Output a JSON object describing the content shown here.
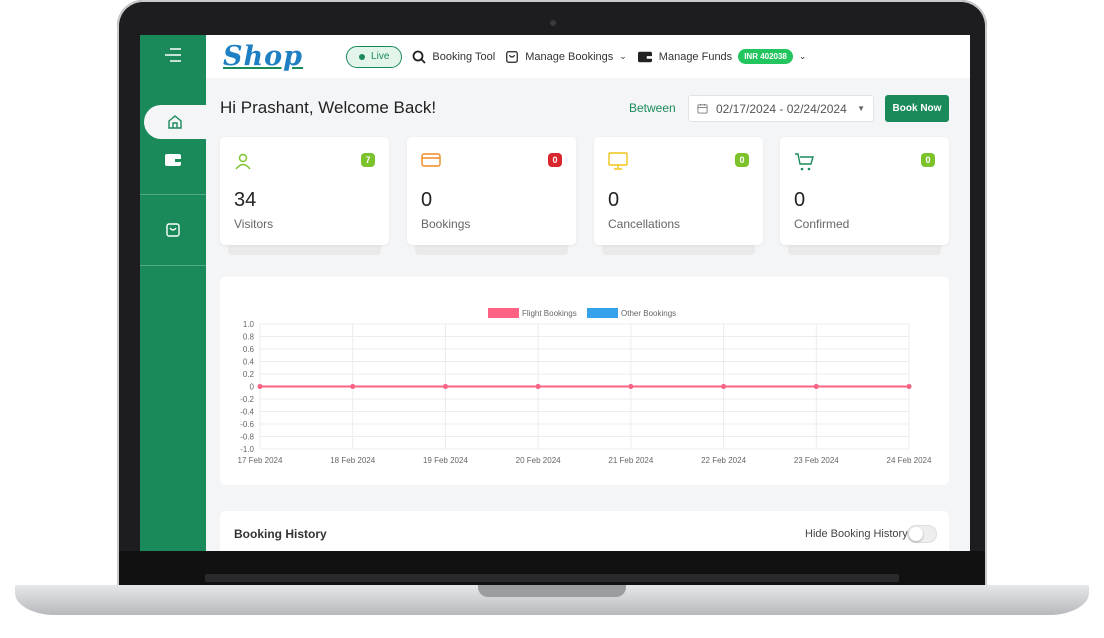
{
  "nav": {
    "logo": "Shop",
    "live_label": "Live",
    "booking_tool": "Booking Tool",
    "manage_bookings": "Manage Bookings",
    "manage_funds": "Manage Funds",
    "funds_badge": "INR 402038"
  },
  "sidebar": {
    "items": [
      {
        "icon": "menu-icon"
      },
      {
        "icon": "home-icon",
        "active": true
      },
      {
        "icon": "wallet-icon"
      },
      {
        "icon": "bag-icon"
      }
    ]
  },
  "header": {
    "welcome": "Hi Prashant, Welcome Back!",
    "between_label": "Between",
    "date_range": "02/17/2024 - 02/24/2024",
    "book_now": "Book Now"
  },
  "stats": [
    {
      "value": "34",
      "label": "Visitors",
      "badge": "7",
      "badge_color": "#7cc22b",
      "icon": "user-icon",
      "icon_color": "#7cc22b"
    },
    {
      "value": "0",
      "label": "Bookings",
      "badge": "0",
      "badge_color": "#d9262c",
      "icon": "card-icon",
      "icon_color": "#f08a24"
    },
    {
      "value": "0",
      "label": "Cancellations",
      "badge": "0",
      "badge_color": "#7cc22b",
      "icon": "monitor-icon",
      "icon_color": "#f0c419"
    },
    {
      "value": "0",
      "label": "Confirmed",
      "badge": "0",
      "badge_color": "#7cc22b",
      "icon": "cart-icon",
      "icon_color": "#1b8a5a"
    }
  ],
  "chart_data": {
    "type": "line",
    "x": [
      "17 Feb 2024",
      "18 Feb 2024",
      "19 Feb 2024",
      "20 Feb 2024",
      "21 Feb 2024",
      "22 Feb 2024",
      "23 Feb 2024",
      "24 Feb 2024"
    ],
    "series": [
      {
        "name": "Flight Bookings",
        "color": "#ff6384",
        "values": [
          0,
          0,
          0,
          0,
          0,
          0,
          0,
          0
        ]
      },
      {
        "name": "Other Bookings",
        "color": "#36a2eb",
        "values": [
          0,
          0,
          0,
          0,
          0,
          0,
          0,
          0
        ]
      }
    ],
    "yticks": [
      "1.0",
      "0.8",
      "0.6",
      "0.4",
      "0.2",
      "0",
      "-0.2",
      "-0.4",
      "-0.6",
      "-0.8",
      "-1.0"
    ],
    "ylim": [
      -1,
      1
    ],
    "grid": true,
    "legend": "top"
  },
  "history": {
    "title": "Booking History",
    "hide_label": "Hide Booking History"
  }
}
